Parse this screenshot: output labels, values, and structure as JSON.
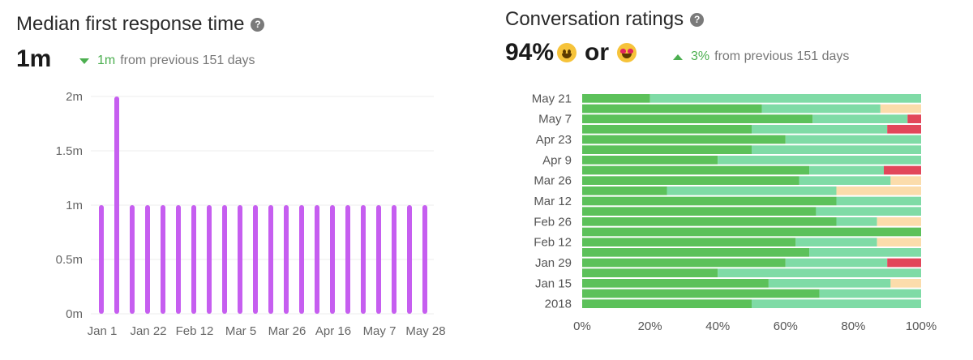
{
  "left": {
    "title": "Median first response time",
    "value": "1m",
    "delta_value": "1m",
    "delta_text": "from previous 151 days",
    "delta_direction": "down"
  },
  "right": {
    "title": "Conversation ratings",
    "value": "94%",
    "or_word": "or",
    "emoji_1": "grinning-face-emoji",
    "emoji_2": "heart-eyes-emoji",
    "delta_value": "3%",
    "delta_text": "from previous 151 days",
    "delta_direction": "up"
  },
  "colors": {
    "accent_green": "#4caf50",
    "bar_purple": "#c65ef0",
    "great": "#5cc15a",
    "good": "#7fdba6",
    "okay": "#fbdcab",
    "bad": "#e2465a"
  },
  "chart_data": [
    {
      "type": "bar",
      "title": "Median first response time",
      "ylabel": "",
      "xlabel": "",
      "y_tick_labels": [
        "0m",
        "0.5m",
        "1m",
        "1.5m",
        "2m"
      ],
      "y_ticks": [
        0,
        0.5,
        1,
        1.5,
        2
      ],
      "ylim": [
        0,
        2
      ],
      "x_tick_labels": [
        "Jan 1",
        "Jan 22",
        "Feb 12",
        "Mar 5",
        "Mar 26",
        "Apr 16",
        "May 7",
        "May 28"
      ],
      "values": [
        1,
        2,
        1,
        1,
        1,
        1,
        1,
        1,
        1,
        1,
        1,
        1,
        1,
        1,
        1,
        1,
        1,
        1,
        1,
        1,
        1,
        1
      ],
      "unit": "minutes",
      "grid": true
    },
    {
      "type": "bar",
      "orientation": "horizontal",
      "stacked": true,
      "title": "Conversation ratings",
      "x_tick_labels": [
        "0%",
        "20%",
        "40%",
        "60%",
        "80%",
        "100%"
      ],
      "xlim": [
        0,
        100
      ],
      "category_labels": [
        "May 21",
        "May 7",
        "Apr 23",
        "Apr 9",
        "Mar 26",
        "Mar 12",
        "Feb 26",
        "Feb 12",
        "Jan 29",
        "Jan 15",
        "2018"
      ],
      "rows": [
        [
          20,
          80,
          0,
          0
        ],
        [
          53,
          35,
          12,
          0
        ],
        [
          68,
          28,
          0,
          4
        ],
        [
          50,
          40,
          0,
          10
        ],
        [
          60,
          40,
          0,
          0
        ],
        [
          50,
          50,
          0,
          0
        ],
        [
          40,
          60,
          0,
          0
        ],
        [
          67,
          22,
          0,
          11
        ],
        [
          64,
          27,
          9,
          0
        ],
        [
          25,
          50,
          25,
          0
        ],
        [
          75,
          25,
          0,
          0
        ],
        [
          69,
          31,
          0,
          0
        ],
        [
          75,
          12,
          13,
          0
        ],
        [
          100,
          0,
          0,
          0
        ],
        [
          63,
          24,
          13,
          0
        ],
        [
          67,
          33,
          0,
          0
        ],
        [
          60,
          30,
          0,
          10
        ],
        [
          40,
          60,
          0,
          0
        ],
        [
          55,
          36,
          9,
          0
        ],
        [
          70,
          30,
          0,
          0
        ],
        [
          50,
          50,
          0,
          0
        ]
      ],
      "segment_colors": [
        "#5cc15a",
        "#7fdba6",
        "#fbdcab",
        "#e2465a"
      ],
      "grid": false
    }
  ]
}
